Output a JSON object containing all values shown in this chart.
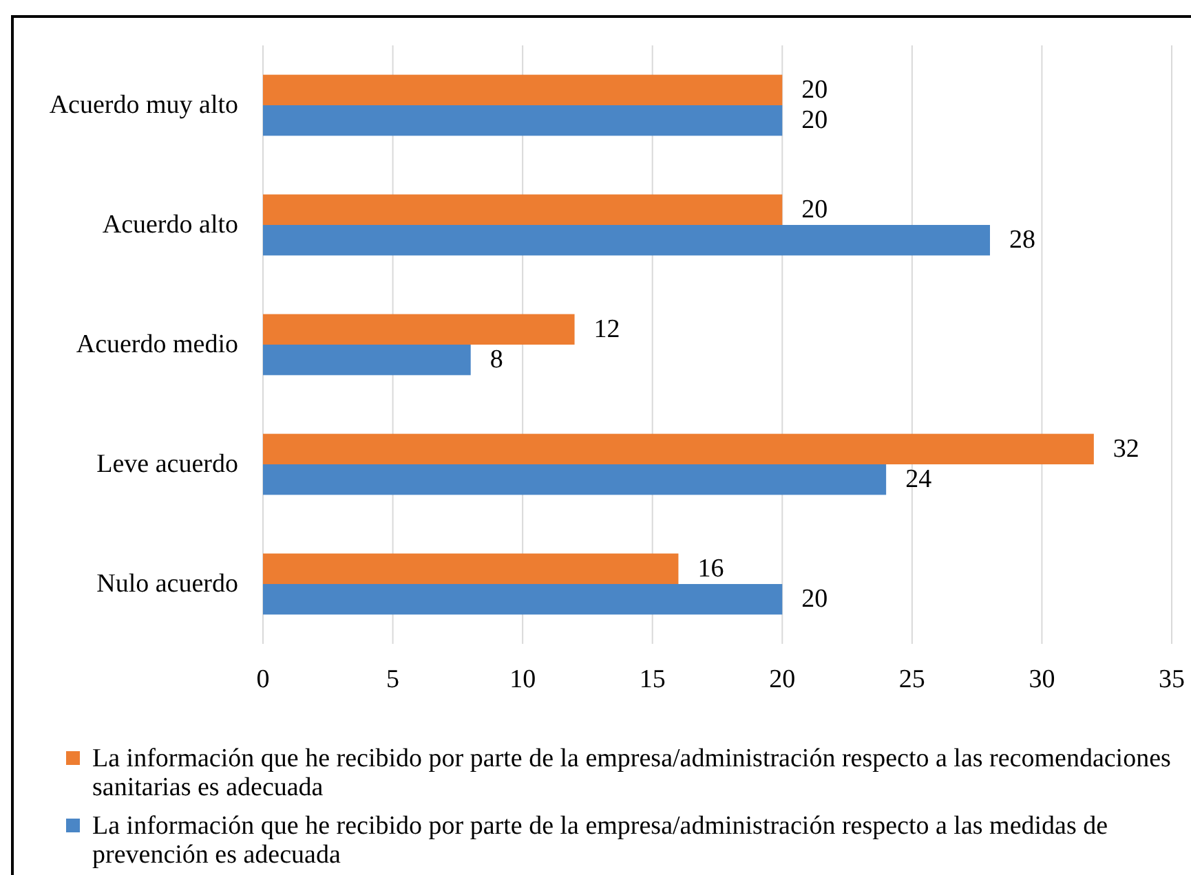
{
  "chart_data": {
    "type": "bar",
    "orientation": "horizontal",
    "categories": [
      "Acuerdo muy alto",
      "Acuerdo alto",
      "Acuerdo medio",
      "Leve acuerdo",
      "Nulo acuerdo"
    ],
    "series": [
      {
        "name": "La información que he recibido por parte de la empresa/administración respecto a las recomendaciones sanitarias es adecuada",
        "color": "#ed7d31",
        "values": [
          20,
          20,
          12,
          32,
          16
        ]
      },
      {
        "name": "La información que he recibido por parte de la empresa/administración respecto a las medidas de prevención es adecuada",
        "color": "#4a86c6",
        "values": [
          20,
          28,
          8,
          24,
          20
        ]
      }
    ],
    "xlim": [
      0,
      35
    ],
    "xticks": [
      0,
      5,
      10,
      15,
      20,
      25,
      30,
      35
    ],
    "grid": "x",
    "legend": "bottom",
    "data_labels": true
  }
}
